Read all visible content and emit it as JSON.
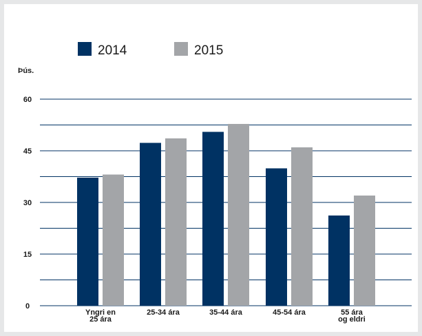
{
  "chart_data": {
    "type": "bar",
    "title": "",
    "ylabel": "Þús.",
    "xlabel": "",
    "ylim": [
      0,
      60
    ],
    "ytick_values": [
      0,
      15,
      30,
      45,
      60
    ],
    "ytick_labels": [
      "0",
      "15",
      "30",
      "45",
      "60"
    ],
    "minor_gridlines": [
      7.5,
      22.5,
      37.5,
      52.5
    ],
    "grid": true,
    "legend_placement": "top-left",
    "categories": [
      [
        "Yngri en",
        "25 ára"
      ],
      [
        "25-34 ára"
      ],
      [
        "35-44 ára"
      ],
      [
        "45-54 ára"
      ],
      [
        "55 ára",
        "og eldri"
      ]
    ],
    "series": [
      {
        "name": "2014",
        "color": "#003263",
        "values": [
          37.2,
          47.3,
          50.5,
          39.9,
          26.2
        ]
      },
      {
        "name": "2015",
        "color": "#a3a5a8",
        "values": [
          38.1,
          48.6,
          52.8,
          46.0,
          32.0
        ]
      }
    ],
    "gridline_color": "#003263"
  }
}
